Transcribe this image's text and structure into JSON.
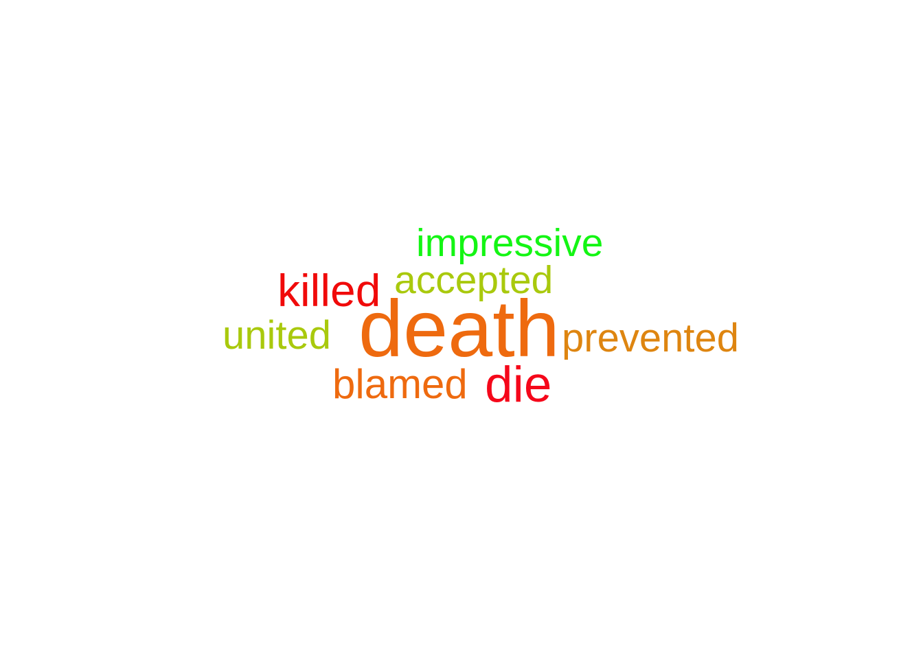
{
  "words": [
    {
      "id": "death",
      "text": "death",
      "color": "#EE6A0F"
    },
    {
      "id": "impressive",
      "text": "impressive",
      "color": "#14F514"
    },
    {
      "id": "accepted",
      "text": "accepted",
      "color": "#A9C90D"
    },
    {
      "id": "killed",
      "text": "killed",
      "color": "#F00A0A"
    },
    {
      "id": "united",
      "text": "united",
      "color": "#A9C90D"
    },
    {
      "id": "prevented",
      "text": "prevented",
      "color": "#DE8510"
    },
    {
      "id": "blamed",
      "text": "blamed",
      "color": "#EE6A0F"
    },
    {
      "id": "die",
      "text": "die",
      "color": "#F5071A"
    }
  ]
}
